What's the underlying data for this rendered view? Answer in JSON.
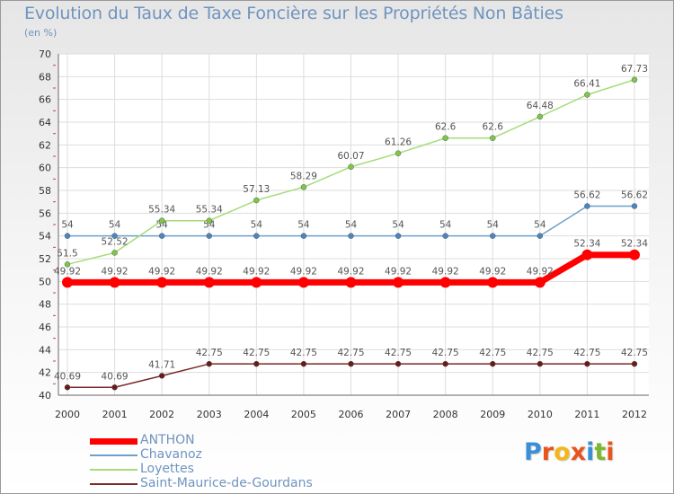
{
  "title": "Evolution du Taux de Taxe Foncière sur les Propriétés Non Bâties",
  "subtitle": "(en %)",
  "logo": {
    "letters": [
      {
        "char": "P",
        "color": "#3a8fd6"
      },
      {
        "char": "r",
        "color": "#e8541e"
      },
      {
        "char": "o",
        "color": "#f4b61a"
      },
      {
        "char": "x",
        "color": "#e8541e"
      },
      {
        "char": "i",
        "color": "#3a8fd6"
      },
      {
        "char": "t",
        "color": "#7cb82f"
      },
      {
        "char": "i",
        "color": "#e8541e"
      }
    ]
  },
  "chart_data": {
    "type": "line",
    "x": [
      "2000",
      "2001",
      "2002",
      "2003",
      "2004",
      "2005",
      "2006",
      "2007",
      "2008",
      "2009",
      "2010",
      "2011",
      "2012"
    ],
    "ylim": [
      40,
      70
    ],
    "yticks": [
      40,
      42,
      44,
      46,
      48,
      50,
      52,
      54,
      56,
      58,
      60,
      62,
      64,
      66,
      68,
      70
    ],
    "grid": true,
    "legend_position": "bottom-left",
    "series": [
      {
        "name": "Saint-Maurice-de-Gourdans",
        "color": "#7a2a2a",
        "marker_color": "#6b1a1a",
        "width": 1.5,
        "values": [
          40.69,
          40.69,
          41.71,
          42.75,
          42.75,
          42.75,
          42.75,
          42.75,
          42.75,
          42.75,
          42.75,
          42.75,
          42.75
        ],
        "labels": [
          "40.69",
          "40.69",
          "41.71",
          "42.75",
          "42.75",
          "42.75",
          "42.75",
          "42.75",
          "42.75",
          "42.75",
          "42.75",
          "42.75",
          "42.75"
        ]
      },
      {
        "name": "Chavanoz",
        "color": "#6ea0cc",
        "marker_color": "#4a86c0",
        "width": 1.5,
        "values": [
          54,
          54,
          54,
          54,
          54,
          54,
          54,
          54,
          54,
          54,
          54,
          56.62,
          56.62
        ],
        "labels": [
          "54",
          "54",
          "54",
          "54",
          "54",
          "54",
          "54",
          "54",
          "54",
          "54",
          "54",
          "56.62",
          "56.62"
        ]
      },
      {
        "name": "Loyettes",
        "color": "#a6dc7a",
        "marker_color": "#7cc846",
        "width": 1.5,
        "values": [
          51.5,
          52.52,
          55.34,
          55.34,
          57.13,
          58.29,
          60.07,
          61.26,
          62.6,
          62.6,
          64.48,
          66.41,
          67.73
        ],
        "labels": [
          "51.5",
          "52.52",
          "55.34",
          "55.34",
          "57.13",
          "58.29",
          "60.07",
          "61.26",
          "62.6",
          "62.6",
          "64.48",
          "66.41",
          "67.73"
        ]
      },
      {
        "name": "ANTHON",
        "color": "#ff0000",
        "marker_color": "#ff0000",
        "width": 7,
        "values": [
          49.92,
          49.92,
          49.92,
          49.92,
          49.92,
          49.92,
          49.92,
          49.92,
          49.92,
          49.92,
          49.92,
          52.34,
          52.34
        ],
        "labels": [
          "49.92",
          "49.92",
          "49.92",
          "49.92",
          "49.92",
          "49.92",
          "49.92",
          "49.92",
          "49.92",
          "49.92",
          "49.92",
          "52.34",
          "52.34"
        ]
      }
    ],
    "legend_order": [
      "ANTHON",
      "Chavanoz",
      "Loyettes",
      "Saint-Maurice-de-Gourdans"
    ]
  }
}
